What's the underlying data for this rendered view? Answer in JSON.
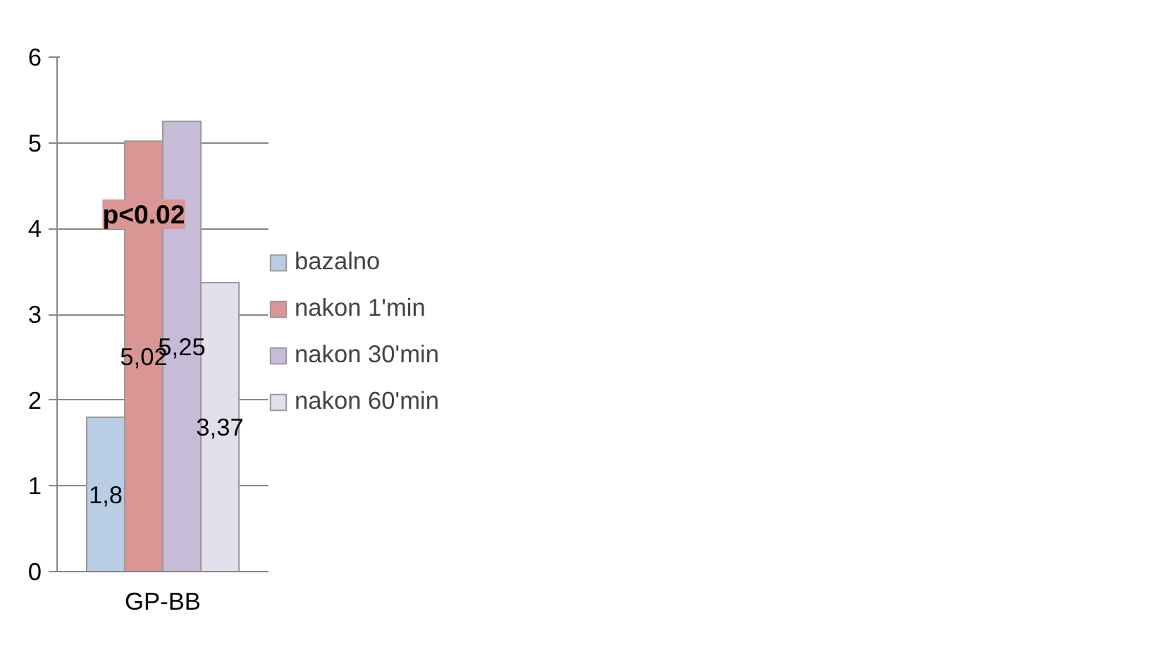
{
  "chart_data": {
    "type": "bar",
    "categories": [
      "GP-BB"
    ],
    "series": [
      {
        "name": "bazalno",
        "color": "#b9cde5",
        "values": [
          1.8
        ],
        "value_labels": [
          "1,8"
        ]
      },
      {
        "name": "nakon 1'min",
        "color": "#d99694",
        "values": [
          5.02
        ],
        "value_labels": [
          "5,02"
        ]
      },
      {
        "name": "nakon 30'min",
        "color": "#c7bcd8",
        "values": [
          5.25
        ],
        "value_labels": [
          "5,25"
        ]
      },
      {
        "name": "nakon 60'min",
        "color": "#e4dfec",
        "values": [
          3.37
        ],
        "value_labels": [
          "3,37"
        ]
      }
    ],
    "ylim": [
      0,
      6
    ],
    "yticks": [
      0,
      1,
      2,
      3,
      4,
      5,
      6
    ],
    "grid": "y",
    "legend": "right",
    "data_labels": true,
    "annotations": [
      "p<0.02"
    ]
  }
}
